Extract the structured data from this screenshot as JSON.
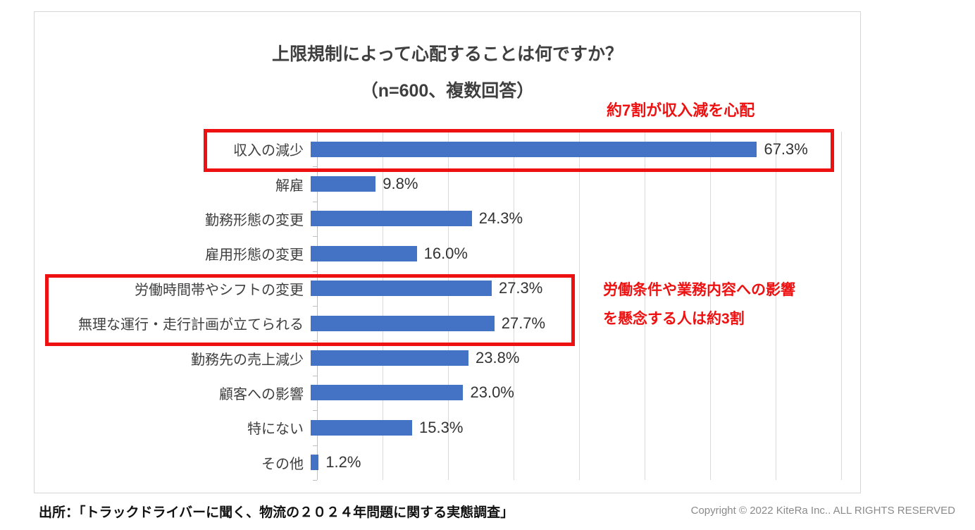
{
  "title": {
    "line1": "上限規制によって心配することは何ですか？",
    "line2": "（n=600、複数回答）"
  },
  "chart_data": {
    "type": "bar",
    "orientation": "horizontal",
    "title": "上限規制によって心配することは何ですか？（n=600、複数回答）",
    "categories": [
      "収入の減少",
      "解雇",
      "勤務形態の変更",
      "雇用形態の変更",
      "労働時間帯やシフトの変更",
      "無理な運行・走行計画が立てられる",
      "勤務先の売上減少",
      "顧客への影響",
      "特にない",
      "その他"
    ],
    "values": [
      67.3,
      9.8,
      24.3,
      16.0,
      27.3,
      27.7,
      23.8,
      23.0,
      15.3,
      1.2
    ],
    "value_labels": [
      "67.3%",
      "9.8%",
      "24.3%",
      "16.0%",
      "27.3%",
      "27.7%",
      "23.8%",
      "23.0%",
      "15.3%",
      "1.2%"
    ],
    "xlim": [
      0,
      80
    ],
    "gridline_step": 10,
    "grid": true,
    "legend": false,
    "bar_color": "#4472C4",
    "gridline_color": "#d9d9d9"
  },
  "annotations": {
    "income_note": "約7割が収入減を心配",
    "conditions_note_line1": "労働条件や業務内容への影響",
    "conditions_note_line2": "を懸念する人は約3割",
    "highlight_color": "#ee1111"
  },
  "footer": {
    "source": "出所：「トラックドライバーに聞く、物流の２０２４年問題に関する実態調査」",
    "copyright": "Copyright © 2022 KiteRa Inc.. ALL RIGHTS RESERVED"
  }
}
